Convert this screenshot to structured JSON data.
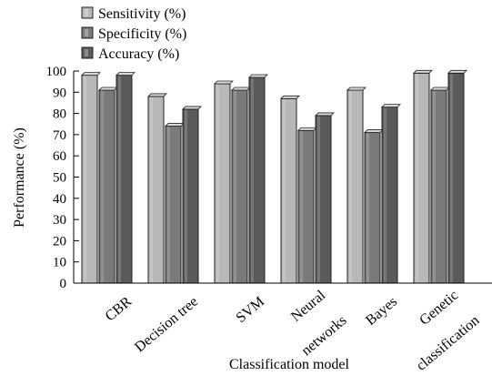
{
  "chart_data": {
    "type": "bar",
    "xlabel": "Classification model",
    "ylabel": "Performance (%)",
    "ylim": [
      0,
      100
    ],
    "yticks": [
      0,
      10,
      20,
      30,
      40,
      50,
      60,
      70,
      80,
      90,
      100
    ],
    "grid": false,
    "legend_position": "top-left",
    "categories": [
      {
        "lines": [
          "CBR"
        ]
      },
      {
        "lines": [
          "Decision tree"
        ]
      },
      {
        "lines": [
          "SVM"
        ]
      },
      {
        "lines": [
          "Neural",
          "networks"
        ]
      },
      {
        "lines": [
          "Bayes"
        ]
      },
      {
        "lines": [
          "Genetic",
          "classification"
        ]
      }
    ],
    "series": [
      {
        "name": "Sensitivity (%)",
        "color": "#b8b8b8",
        "values": [
          98,
          88,
          94,
          87,
          91,
          99
        ]
      },
      {
        "name": "Specificity (%)",
        "color": "#7a7a7a",
        "values": [
          91,
          74,
          91,
          72,
          71,
          91
        ]
      },
      {
        "name": "Accuracy (%)",
        "color": "#5a5a5a",
        "values": [
          98,
          82,
          97,
          79,
          83,
          99
        ]
      }
    ]
  }
}
